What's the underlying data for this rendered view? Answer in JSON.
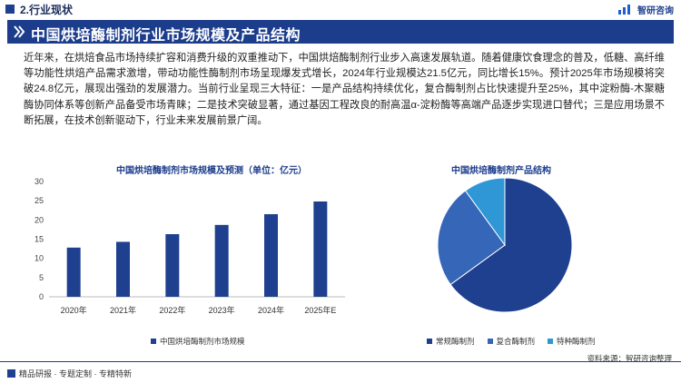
{
  "header": {
    "section_title": "2.行业现状",
    "logo_text": "智研咨询",
    "banner_title": "中国烘培酶制剂行业市场规模及产品结构"
  },
  "intro": "近年来，在烘焙食品市场持续扩容和消费升级的双重推动下，中国烘焙酶制剂行业步入高速发展轨道。随着健康饮食理念的普及，低糖、高纤维等功能性烘焙产品需求激增，带动功能性酶制剂市场呈现爆发式增长，2024年行业规模达21.5亿元，同比增长15%。预计2025年市场规模将突破24.8亿元，展现出强劲的发展潜力。当前行业呈现三大特征：一是产品结构持续优化，复合酶制剂占比快速提升至25%，其中淀粉酶-木聚糖酶协同体系等创新产品备受市场青睐；二是技术突破显著，通过基因工程改良的耐高温α-淀粉酶等高端产品逐步实现进口替代；三是应用场景不断拓展，在技术创新驱动下，行业未来发展前景广阔。",
  "colors": {
    "navy": "#1c3d8c",
    "bar": "#1f3f8f",
    "pie_regular": "#1f3f8f",
    "pie_compound": "#3566b8",
    "pie_special": "#2f97d6"
  },
  "chart_data": [
    {
      "type": "bar",
      "title": "中国烘培酶制剂市场规模及预测（单位：亿元）",
      "categories": [
        "2020年",
        "2021年",
        "2022年",
        "2023年",
        "2024年",
        "2025年E"
      ],
      "series": [
        {
          "name": "中国烘培酶制剂市场规模",
          "values": [
            12.8,
            14.3,
            16.3,
            18.7,
            21.5,
            24.8
          ]
        }
      ],
      "yticks": [
        "0",
        "5",
        "10",
        "15",
        "20",
        "25",
        "30"
      ],
      "ylim": [
        0,
        30
      ],
      "grid": false,
      "legend": "bottom"
    },
    {
      "type": "pie",
      "title": "中国烘培酶制剂产品结构",
      "slices": [
        {
          "name": "常规酶制剂",
          "value": 65
        },
        {
          "name": "复合酶制剂",
          "value": 25
        },
        {
          "name": "特种酶制剂",
          "value": 10
        }
      ],
      "legend": "bottom"
    }
  ],
  "footer": {
    "left_text": "精品研报 · 专题定制 · 专精特新",
    "source": "资料来源：智研咨询整理"
  }
}
